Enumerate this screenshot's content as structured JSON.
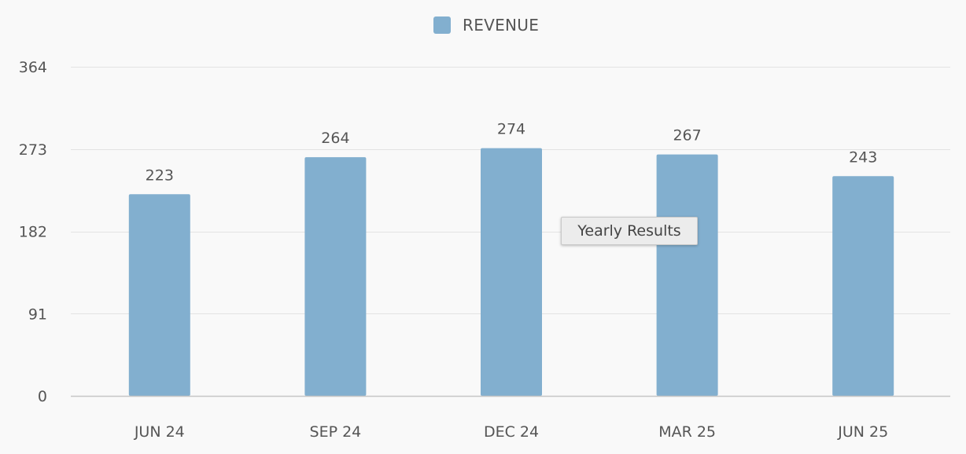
{
  "chart_data": {
    "type": "bar",
    "title": "",
    "xlabel": "",
    "ylabel": "",
    "categories": [
      "JUN 24",
      "SEP 24",
      "DEC 24",
      "MAR 25",
      "JUN 25"
    ],
    "series": [
      {
        "name": "REVENUE",
        "color": "#82afcf",
        "values": [
          223,
          264,
          274,
          267,
          243
        ]
      }
    ],
    "yticks": [
      0,
      91,
      182,
      273,
      364
    ],
    "ylim": [
      0,
      364
    ],
    "grid": true,
    "legend_position": "top-center",
    "tooltip": "Yearly Results"
  }
}
